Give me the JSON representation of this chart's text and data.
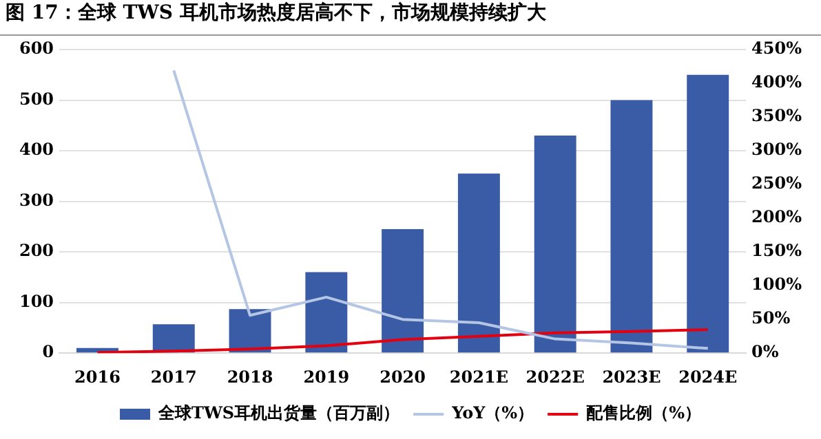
{
  "chart_data": {
    "type": "bar",
    "title": "图 17：全球 TWS 耳机市场热度居高不下，市场规模持续扩大",
    "categories": [
      "2016",
      "2017",
      "2018",
      "2019",
      "2020",
      "2021E",
      "2022E",
      "2023E",
      "2024E"
    ],
    "series": [
      {
        "name": "全球TWS耳机出货量（百万副）",
        "color": "#3a5ba6",
        "values": [
          10,
          57,
          87,
          160,
          245,
          355,
          430,
          500,
          550
        ]
      },
      {
        "name": "YoY（%）",
        "type": "line",
        "axis": "y2",
        "color": "#b4c6e4",
        "values": [
          null,
          419,
          56,
          83,
          50,
          45,
          21,
          15,
          7
        ]
      },
      {
        "name": "配售比例（%）",
        "type": "line",
        "axis": "y2",
        "color": "#e3000f",
        "values": [
          1,
          3,
          6,
          11,
          20,
          25,
          30,
          32,
          35
        ]
      }
    ],
    "ylim": [
      0,
      600
    ],
    "yticks": [
      0,
      100,
      200,
      300,
      400,
      500,
      600
    ],
    "y2lim": [
      0,
      450
    ],
    "y2ticks": [
      {
        "value": 0,
        "label": "0%"
      },
      {
        "value": 50,
        "label": "50%"
      },
      {
        "value": 100,
        "label": "100%"
      },
      {
        "value": 150,
        "label": "150%"
      },
      {
        "value": 200,
        "label": "200%"
      },
      {
        "value": 250,
        "label": "250%"
      },
      {
        "value": 300,
        "label": "300%"
      },
      {
        "value": 350,
        "label": "350%"
      },
      {
        "value": 400,
        "label": "400%"
      },
      {
        "value": 450,
        "label": "450%"
      }
    ],
    "grid": "y",
    "legend": "bottom",
    "marker": "none"
  }
}
